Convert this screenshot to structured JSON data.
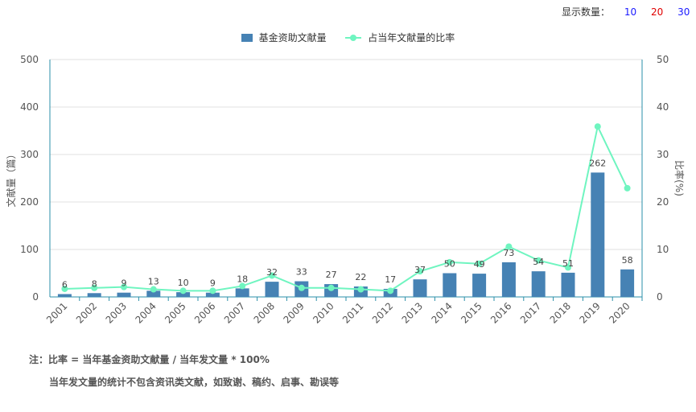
{
  "display_count": {
    "label": "显示数量：",
    "options": [
      {
        "value": "10",
        "color": "#1a1aff"
      },
      {
        "value": "20",
        "color": "#e00000"
      },
      {
        "value": "30",
        "color": "#1a1aff"
      }
    ]
  },
  "colors": {
    "bar": "#4682b4",
    "line": "#6ff5c0",
    "axis": "#2a8fa8",
    "grid": "#e0e0e0"
  },
  "chart_data": {
    "type": "bar",
    "categories": [
      "2001",
      "2002",
      "2003",
      "2004",
      "2005",
      "2006",
      "2007",
      "2008",
      "2009",
      "2010",
      "2011",
      "2012",
      "2013",
      "2014",
      "2015",
      "2016",
      "2017",
      "2018",
      "2019",
      "2020"
    ],
    "series": [
      {
        "name": "基金资助文献量",
        "type": "bar",
        "axis": "left",
        "values": [
          6,
          8,
          9,
          13,
          10,
          9,
          18,
          32,
          33,
          27,
          22,
          17,
          37,
          50,
          49,
          73,
          54,
          51,
          262,
          58
        ]
      },
      {
        "name": "占当年文献量的比率",
        "type": "line",
        "axis": "right",
        "values": [
          1.7,
          1.9,
          2.1,
          1.6,
          1.3,
          1.3,
          2.3,
          4.5,
          1.9,
          1.9,
          1.6,
          1.3,
          5.4,
          7.3,
          7.0,
          10.6,
          7.7,
          6.2,
          35.9,
          22.9
        ]
      }
    ],
    "ylabel": "文献量（篇）",
    "y2label": "比率(%)",
    "ylim": [
      0,
      500
    ],
    "y2lim": [
      0,
      50
    ],
    "yticks": [
      0,
      100,
      200,
      300,
      400,
      500
    ],
    "y2ticks": [
      0,
      10,
      20,
      30,
      40,
      50
    ],
    "legend_position": "top-center",
    "grid": true
  },
  "notes": {
    "line1": "注：比率 = 当年基金资助文献量 / 当年发文量 * 100%",
    "line2": "当年发文量的统计不包含资讯类文献，如致谢、稿约、启事、勘误等"
  }
}
